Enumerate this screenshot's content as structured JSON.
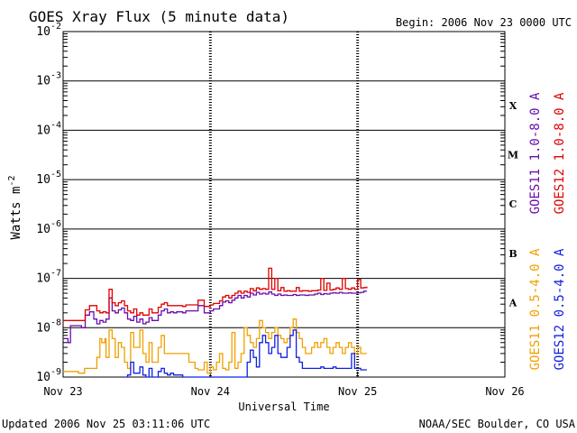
{
  "chart_data": {
    "type": "line",
    "title": "GOES Xray Flux (5 minute data)",
    "begin_label": "Begin:  2006 Nov 23 0000 UTC",
    "ylabel": "Watts m",
    "ylabel_sup": "-2",
    "xlabel": "Universal Time",
    "y_scale": "log",
    "ylim": [
      1e-09,
      0.01
    ],
    "y_ticks": [
      {
        "base": "10",
        "exp": "-2",
        "value": 0.01
      },
      {
        "base": "10",
        "exp": "-3",
        "value": 0.001
      },
      {
        "base": "10",
        "exp": "-4",
        "value": 0.0001
      },
      {
        "base": "10",
        "exp": "-5",
        "value": 1e-05
      },
      {
        "base": "10",
        "exp": "-6",
        "value": 1e-06
      },
      {
        "base": "10",
        "exp": "-7",
        "value": 1e-07
      },
      {
        "base": "10",
        "exp": "-8",
        "value": 1e-08
      },
      {
        "base": "10",
        "exp": "-9",
        "value": 1e-09
      }
    ],
    "xlim": [
      0,
      72
    ],
    "x_ticks": [
      {
        "label": "Nov 23",
        "value": 0
      },
      {
        "label": "Nov 24",
        "value": 24
      },
      {
        "label": "Nov 25",
        "value": 48
      },
      {
        "label": "Nov 26",
        "value": 72
      }
    ],
    "flare_classes": [
      {
        "label": "X",
        "value": 0.00032
      },
      {
        "label": "M",
        "value": 3.2e-05
      },
      {
        "label": "C",
        "value": 3.2e-06
      },
      {
        "label": "B",
        "value": 3.2e-07
      },
      {
        "label": "A",
        "value": 3.2e-08
      }
    ],
    "grid": true,
    "legend_placement": "right",
    "series": [
      {
        "name": "GOES11 1.0-8.0 A",
        "color": "#6a0dad",
        "x": [
          0,
          0.8,
          1.2,
          3.0,
          3.6,
          4.3,
          5.0,
          5.5,
          6.0,
          6.5,
          7.0,
          7.5,
          8.0,
          8.5,
          9.0,
          9.5,
          10.0,
          10.5,
          11.0,
          11.5,
          12.0,
          12.5,
          13.0,
          13.5,
          14.0,
          14.5,
          15.0,
          15.5,
          16.0,
          16.5,
          17.0,
          17.5,
          18.0,
          18.5,
          19.0,
          19.5,
          20.0,
          21.0,
          22.0,
          23.0,
          24.0,
          24.5,
          25.0,
          25.5,
          26.0,
          26.5,
          27.0,
          27.5,
          28.0,
          28.5,
          29.0,
          29.5,
          30.0,
          30.5,
          31.0,
          31.5,
          32.0,
          32.5,
          33.0,
          33.5,
          34.0,
          34.5,
          35.0,
          35.5,
          36.0,
          36.5,
          37.0,
          37.5,
          38.0,
          38.5,
          39.0,
          39.5,
          40.0,
          40.5,
          41.0,
          41.5,
          42.0,
          42.5,
          43.0,
          43.5,
          44.0,
          44.5,
          45.0,
          45.5,
          46.0,
          46.5,
          47.0,
          47.5,
          48.0,
          48.5,
          49.0,
          49.5
        ],
        "y": [
          6e-09,
          5e-09,
          1.1e-08,
          1e-08,
          1.8e-08,
          2.1e-08,
          1.5e-08,
          1.2e-08,
          1.4e-08,
          1.3e-08,
          1.5e-08,
          4e-08,
          2.2e-08,
          2e-08,
          2.3e-08,
          2.5e-08,
          2e-08,
          1.5e-08,
          1.4e-08,
          1.7e-08,
          1.3e-08,
          1.5e-08,
          1.2e-08,
          1.3e-08,
          1.6e-08,
          1.4e-08,
          1.4e-08,
          1.8e-08,
          2.2e-08,
          2.4e-08,
          2e-08,
          2.1e-08,
          2e-08,
          2.1e-08,
          2.1e-08,
          2e-08,
          2.2e-08,
          2.2e-08,
          2.8e-08,
          2e-08,
          2.2e-08,
          2.4e-08,
          2.4e-08,
          2.8e-08,
          3.3e-08,
          3.5e-08,
          3.2e-08,
          3.6e-08,
          4e-08,
          4.5e-08,
          4e-08,
          4.5e-08,
          4.2e-08,
          5e-08,
          4.6e-08,
          5.2e-08,
          4.8e-08,
          5e-08,
          4.8e-08,
          5.3e-08,
          4.8e-08,
          4.5e-08,
          4.8e-08,
          4.5e-08,
          4.6e-08,
          4.5e-08,
          4.5e-08,
          4.7e-08,
          4.5e-08,
          4.6e-08,
          4.6e-08,
          4.5e-08,
          4.6e-08,
          4.6e-08,
          4.8e-08,
          5e-08,
          4.7e-08,
          4.9e-08,
          4.8e-08,
          5e-08,
          5.1e-08,
          5e-08,
          5.2e-08,
          5e-08,
          5e-08,
          5.1e-08,
          5e-08,
          5e-08,
          5.1e-08,
          5.2e-08,
          5.5e-08,
          5.5e-08
        ]
      },
      {
        "name": "GOES12 1.0-8.0 A",
        "color": "#e00000",
        "x": [
          0,
          1.5,
          3.0,
          3.6,
          4.3,
          5.0,
          5.5,
          6.0,
          6.5,
          7.0,
          7.5,
          8.0,
          8.5,
          9.0,
          9.5,
          10.0,
          10.5,
          11.0,
          11.5,
          12.0,
          12.5,
          13.0,
          13.5,
          14.0,
          14.5,
          15.0,
          15.5,
          16.0,
          16.5,
          17.0,
          17.5,
          18.0,
          18.5,
          19.0,
          19.5,
          20.0,
          21.0,
          22.0,
          23.0,
          24.0,
          24.5,
          25.0,
          25.5,
          26.0,
          26.5,
          27.0,
          27.5,
          28.0,
          28.5,
          29.0,
          29.5,
          30.0,
          30.5,
          31.0,
          31.5,
          32.0,
          32.5,
          33.0,
          33.5,
          34.0,
          34.5,
          35.0,
          35.5,
          36.0,
          36.5,
          37.0,
          37.5,
          38.0,
          38.5,
          39.0,
          39.5,
          40.0,
          40.5,
          41.0,
          41.5,
          42.0,
          42.5,
          43.0,
          43.5,
          44.0,
          44.5,
          45.0,
          45.5,
          46.0,
          46.5,
          47.0,
          47.5,
          48.0,
          48.5,
          49.0,
          49.5
        ],
        "y": [
          1.4e-08,
          1.4e-08,
          1.4e-08,
          2.3e-08,
          2.8e-08,
          2.8e-08,
          2.2e-08,
          2e-08,
          2.1e-08,
          2e-08,
          6e-08,
          3.2e-08,
          2.8e-08,
          3.2e-08,
          3.5e-08,
          2.8e-08,
          2.2e-08,
          2e-08,
          2.4e-08,
          1.8e-08,
          2e-08,
          1.8e-08,
          1.8e-08,
          2.4e-08,
          2e-08,
          2e-08,
          2.6e-08,
          3e-08,
          3.2e-08,
          2.8e-08,
          2.8e-08,
          2.8e-08,
          2.8e-08,
          2.8e-08,
          2.7e-08,
          2.9e-08,
          2.9e-08,
          3.6e-08,
          2.7e-08,
          2.9e-08,
          3.1e-08,
          3.1e-08,
          3.5e-08,
          4.2e-08,
          4.5e-08,
          4e-08,
          4.5e-08,
          5e-08,
          5.5e-08,
          5e-08,
          5.5e-08,
          5.2e-08,
          6.2e-08,
          5.6e-08,
          6.4e-08,
          6e-08,
          6.2e-08,
          6e-08,
          1.6e-07,
          6e-08,
          1e-07,
          5.6e-08,
          6.5e-08,
          5.5e-08,
          5.6e-08,
          5.5e-08,
          5.5e-08,
          6.5e-08,
          5.5e-08,
          5.6e-08,
          5.6e-08,
          5.5e-08,
          5.6e-08,
          5.6e-08,
          5.8e-08,
          1e-07,
          5.7e-08,
          8e-08,
          5.8e-08,
          6e-08,
          6.4e-08,
          6e-08,
          1e-07,
          6.2e-08,
          6e-08,
          6.4e-08,
          6e-08,
          9.5e-08,
          6.4e-08,
          6.5e-08,
          6.8e-08
        ]
      },
      {
        "name": "GOES11 0.5-4.0 A",
        "color": "#f0a000",
        "x": [
          0,
          2.5,
          3.0,
          3.5,
          4.0,
          5.0,
          5.5,
          6.0,
          6.3,
          6.8,
          7.0,
          7.5,
          8.0,
          8.5,
          9.0,
          9.5,
          10.0,
          10.5,
          11.0,
          11.5,
          12.0,
          12.5,
          13.0,
          13.5,
          14.0,
          14.5,
          15.0,
          15.5,
          16.0,
          16.5,
          17.0,
          17.5,
          18.0,
          18.5,
          19.0,
          19.5,
          20.0,
          20.5,
          21.0,
          21.5,
          22.0,
          22.5,
          23.0,
          23.5,
          24.0,
          24.5,
          25.0,
          25.5,
          26.0,
          26.5,
          27.0,
          27.5,
          28.0,
          28.5,
          29.0,
          29.5,
          30.0,
          30.5,
          31.0,
          31.5,
          32.0,
          32.5,
          33.0,
          33.5,
          34.0,
          34.5,
          35.0,
          35.5,
          36.0,
          36.5,
          37.0,
          37.5,
          38.0,
          38.5,
          39.0,
          39.5,
          40.0,
          40.5,
          41.0,
          41.5,
          42.0,
          42.5,
          43.0,
          43.5,
          44.0,
          44.5,
          45.0,
          45.5,
          46.0,
          46.5,
          47.0,
          47.5,
          48.0,
          48.5,
          49.0,
          49.5
        ],
        "y": [
          1.3e-09,
          1.2e-09,
          1.2e-09,
          1.5e-09,
          1.5e-09,
          1.5e-09,
          2.5e-09,
          6e-09,
          5e-09,
          6e-09,
          2.5e-09,
          9e-09,
          6e-09,
          2.5e-09,
          5e-09,
          4e-09,
          2e-09,
          1.5e-09,
          8e-09,
          4e-09,
          4e-09,
          9e-09,
          3e-09,
          2e-09,
          5e-09,
          2e-09,
          2e-09,
          4e-09,
          7e-09,
          3e-09,
          3e-09,
          3e-09,
          3e-09,
          3e-09,
          3e-09,
          3e-09,
          3e-09,
          2e-09,
          2e-09,
          1.5e-09,
          1.4e-09,
          1.4e-09,
          2e-09,
          1.2e-09,
          1.6e-09,
          1.4e-09,
          2e-09,
          3e-09,
          1.5e-09,
          1.4e-09,
          2e-09,
          8e-09,
          1.5e-09,
          2e-09,
          3e-09,
          1e-08,
          7e-09,
          5e-09,
          4e-09,
          6e-09,
          1.4e-08,
          1e-08,
          8e-09,
          6e-09,
          8e-09,
          1e-08,
          7e-09,
          6e-09,
          5e-09,
          6e-09,
          1e-08,
          1.5e-08,
          8e-09,
          6e-09,
          4e-09,
          3e-09,
          3e-09,
          4e-09,
          5e-09,
          4e-09,
          5e-09,
          6e-09,
          4e-09,
          3e-09,
          4e-09,
          5e-09,
          4e-09,
          3e-09,
          4e-09,
          5e-09,
          4e-09,
          3e-09,
          4e-09,
          3e-09,
          3e-09,
          3e-09
        ]
      },
      {
        "name": "GOES12 0.5-4.0 A",
        "color": "#1020e0",
        "x": [
          10.0,
          10.5,
          11.0,
          11.5,
          12.0,
          12.5,
          13.0,
          13.5,
          14.0,
          14.5,
          15.0,
          15.5,
          16.0,
          16.5,
          17.0,
          17.5,
          18.0,
          18.5,
          19.0,
          19.5,
          20.0,
          21.0,
          22.0,
          23.0,
          24.0,
          24.5,
          25.0,
          25.5,
          26.0,
          26.5,
          27.0,
          27.5,
          28.0,
          28.5,
          29.0,
          29.5,
          30.0,
          30.5,
          31.0,
          31.5,
          32.0,
          32.5,
          33.0,
          33.5,
          34.0,
          34.5,
          35.0,
          35.5,
          36.0,
          36.5,
          37.0,
          37.5,
          38.0,
          38.5,
          39.0,
          39.5,
          40.0,
          40.5,
          41.0,
          41.5,
          42.0,
          42.5,
          43.0,
          43.5,
          44.0,
          44.5,
          45.0,
          45.5,
          46.0,
          46.5,
          47.0,
          47.5,
          48.0,
          48.5,
          49.0,
          49.5
        ],
        "y": [
          1e-09,
          1.1e-09,
          2e-09,
          1.2e-09,
          1.2e-09,
          1.6e-09,
          1.1e-09,
          1e-09,
          1.5e-09,
          1e-09,
          1e-09,
          1.3e-09,
          1.5e-09,
          1.2e-09,
          1.1e-09,
          1.2e-09,
          1.1e-09,
          1.1e-09,
          1.1e-09,
          1e-09,
          1e-09,
          1e-09,
          1e-09,
          1e-09,
          1e-09,
          1e-09,
          1e-09,
          1e-09,
          1e-09,
          1e-09,
          1e-09,
          1e-09,
          1e-09,
          1e-09,
          1e-09,
          1e-09,
          2e-09,
          3.5e-09,
          2.5e-09,
          1.6e-09,
          5e-09,
          7e-09,
          5e-09,
          3e-09,
          4e-09,
          7e-09,
          3e-09,
          2.5e-09,
          2.5e-09,
          4e-09,
          7e-09,
          9e-09,
          2.5e-09,
          2e-09,
          1.5e-09,
          1.5e-09,
          1.5e-09,
          1.5e-09,
          1.5e-09,
          1.5e-09,
          1.6e-09,
          1.5e-09,
          1.5e-09,
          1.5e-09,
          1.6e-09,
          1.5e-09,
          1.5e-09,
          1.5e-09,
          1.5e-09,
          1.5e-09,
          3e-09,
          1.5e-09,
          1.5e-09,
          1.4e-09,
          1.4e-09,
          1.4e-09
        ]
      }
    ]
  },
  "footer": {
    "updated": "Updated 2006 Nov 25 03:11:06 UTC",
    "credit": "NOAA/SEC Boulder, CO USA"
  }
}
